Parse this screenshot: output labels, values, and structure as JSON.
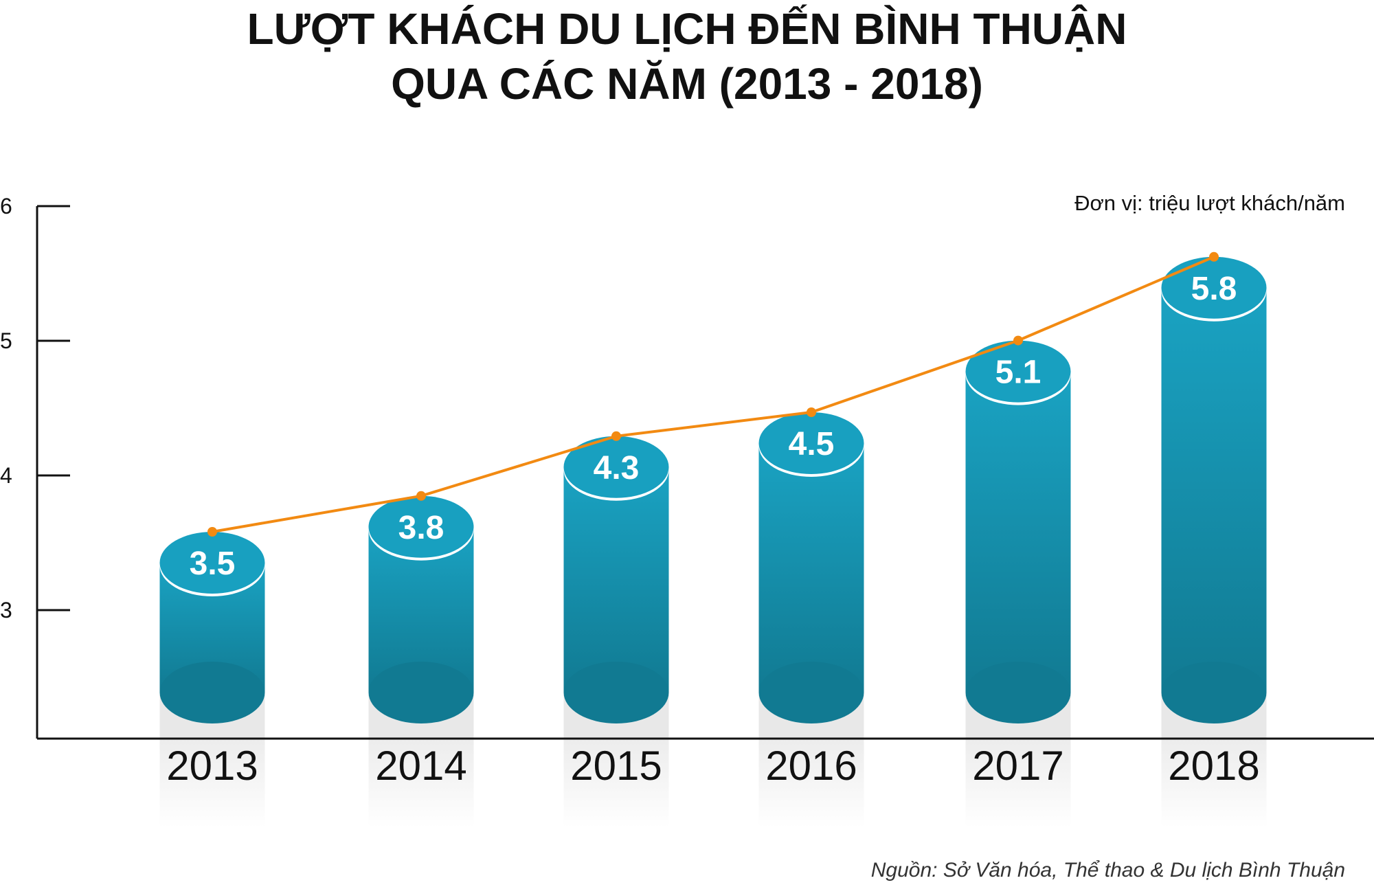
{
  "title_line1": "LƯỢT KHÁCH DU LỊCH ĐẾN BÌNH THUẬN",
  "title_line2": "QUA CÁC NĂM (2013 - 2018)",
  "unit_label": "Đơn vị:  triệu lượt khách/năm",
  "source": "Nguồn: Sở Văn hóa, Thể thao & Du lịch Bình Thuận",
  "chart_data": {
    "type": "bar",
    "title": "LƯỢT KHÁCH DU LỊCH ĐẾN BÌNH THUẬN QUA CÁC NĂM (2013 - 2018)",
    "categories": [
      "2013",
      "2014",
      "2015",
      "2016",
      "2017",
      "2018"
    ],
    "values": [
      3.5,
      3.8,
      4.3,
      4.5,
      5.1,
      5.8
    ],
    "data_labels": [
      "3.5",
      "3.8",
      "4.3",
      "4.5",
      "5.1",
      "5.8"
    ],
    "overlay_line": true,
    "yticks": [
      "3",
      "4",
      "5",
      "6"
    ],
    "ylim": [
      3,
      6
    ],
    "ylabel": "",
    "xlabel": "",
    "grid": false,
    "colors": {
      "bar": "#1aa0c0",
      "bar_dark": "#127a92",
      "line": "#f28a12",
      "reflection": "#e6e6e6"
    }
  }
}
